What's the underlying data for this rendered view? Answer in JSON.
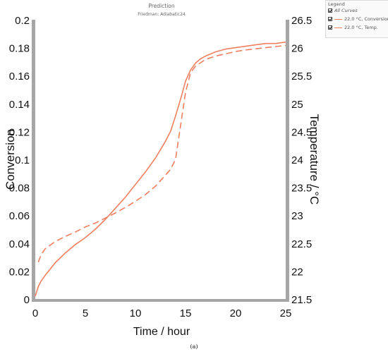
{
  "title": "Prediction",
  "subtitle": "Friedman: Adiabatic24",
  "caption": "(a)",
  "legend": {
    "header": "Legend",
    "all_label": "All Curves",
    "items": [
      "22.0 °C, Conversion",
      "22.0 °C, Temp."
    ]
  },
  "colors": {
    "series": "#f07f5e",
    "axis": "#a6a6a6"
  },
  "chart_data": {
    "type": "line",
    "xlabel": "Time / hour",
    "ylabel": "Conversion",
    "y2label": "Temperature / °C",
    "xlim": [
      0,
      25
    ],
    "ylim": [
      0,
      0.2
    ],
    "y2lim": [
      21.5,
      26.5
    ],
    "xticks": [
      "0",
      "5",
      "10",
      "15",
      "20",
      "25"
    ],
    "yticks": [
      "0",
      "0.02",
      "0.04",
      "0.06",
      "0.08",
      "0.1",
      "0.12",
      "0.14",
      "0.16",
      "0.18",
      "0.2"
    ],
    "y2ticks": [
      "21.5",
      "22",
      "22.5",
      "23",
      "23.5",
      "24",
      "24.5",
      "25",
      "25.5",
      "26",
      "26.5"
    ],
    "grid": false,
    "legend_position": "top-right",
    "series": [
      {
        "name": "22.0 °C, Conversion",
        "axis": "left",
        "style": "solid",
        "x": [
          0,
          0.3,
          0.6,
          1,
          2,
          3,
          4,
          5,
          6,
          7,
          8,
          9,
          10,
          11,
          12,
          13,
          13.5,
          14,
          14.5,
          15,
          15.5,
          16,
          16.5,
          17,
          18,
          19,
          20,
          21,
          22,
          23,
          24,
          25
        ],
        "y": [
          0.002,
          0.009,
          0.013,
          0.017,
          0.026,
          0.033,
          0.039,
          0.044,
          0.05,
          0.057,
          0.065,
          0.073,
          0.082,
          0.091,
          0.101,
          0.113,
          0.12,
          0.131,
          0.143,
          0.156,
          0.164,
          0.169,
          0.172,
          0.174,
          0.177,
          0.179,
          0.18,
          0.181,
          0.182,
          0.183,
          0.183,
          0.184
        ]
      },
      {
        "name": "22.0 °C, Temp.",
        "axis": "right",
        "style": "dashed",
        "x": [
          0.3,
          0.6,
          1,
          2,
          3,
          4,
          5,
          6,
          7,
          8,
          9,
          10,
          11,
          12,
          13,
          13.5,
          14,
          14.5,
          15,
          15.5,
          16,
          16.5,
          17,
          18,
          19,
          20,
          21,
          22,
          23,
          24,
          25
        ],
        "y": [
          22.16,
          22.3,
          22.4,
          22.53,
          22.62,
          22.7,
          22.79,
          22.86,
          22.95,
          23.04,
          23.14,
          23.25,
          23.37,
          23.52,
          23.72,
          23.82,
          24.0,
          24.6,
          25.2,
          25.55,
          25.67,
          25.73,
          25.79,
          25.85,
          25.89,
          25.93,
          25.96,
          25.98,
          26.0,
          26.02,
          26.04
        ]
      }
    ]
  }
}
